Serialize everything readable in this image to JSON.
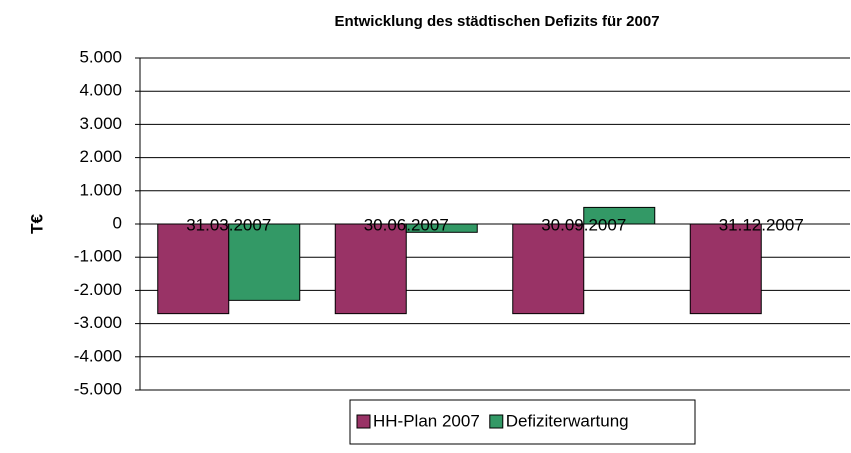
{
  "chart_data": {
    "type": "bar",
    "title": "Entwicklung des städtischen Defizits für 2007",
    "y_label": "T€",
    "categories": [
      "31.03.2007",
      "30.06.2007",
      "30.09.2007",
      "31.12.2007"
    ],
    "series": [
      {
        "name": "HH-Plan 2007",
        "color": "#993366",
        "values": [
          -2700,
          -2700,
          -2700,
          -2700
        ]
      },
      {
        "name": "Defiziterwartung",
        "color": "#339966",
        "values": [
          -2300,
          -250,
          500,
          null
        ]
      }
    ],
    "ylim": [
      -5000,
      5000
    ],
    "yticks": [
      {
        "value": -5000,
        "label": "-5.000"
      },
      {
        "value": -4000,
        "label": "-4.000"
      },
      {
        "value": -3000,
        "label": "-3.000"
      },
      {
        "value": -2000,
        "label": "-2.000"
      },
      {
        "value": -1000,
        "label": "-1.000"
      },
      0,
      {
        "value": 1000,
        "label": "1.000"
      },
      {
        "value": 2000,
        "label": "2.000"
      },
      {
        "value": 3000,
        "label": "3.000"
      },
      {
        "value": 4000,
        "label": "4.000"
      },
      {
        "value": 5000,
        "label": "5.000"
      }
    ],
    "grid": true,
    "legend": "bottom"
  }
}
